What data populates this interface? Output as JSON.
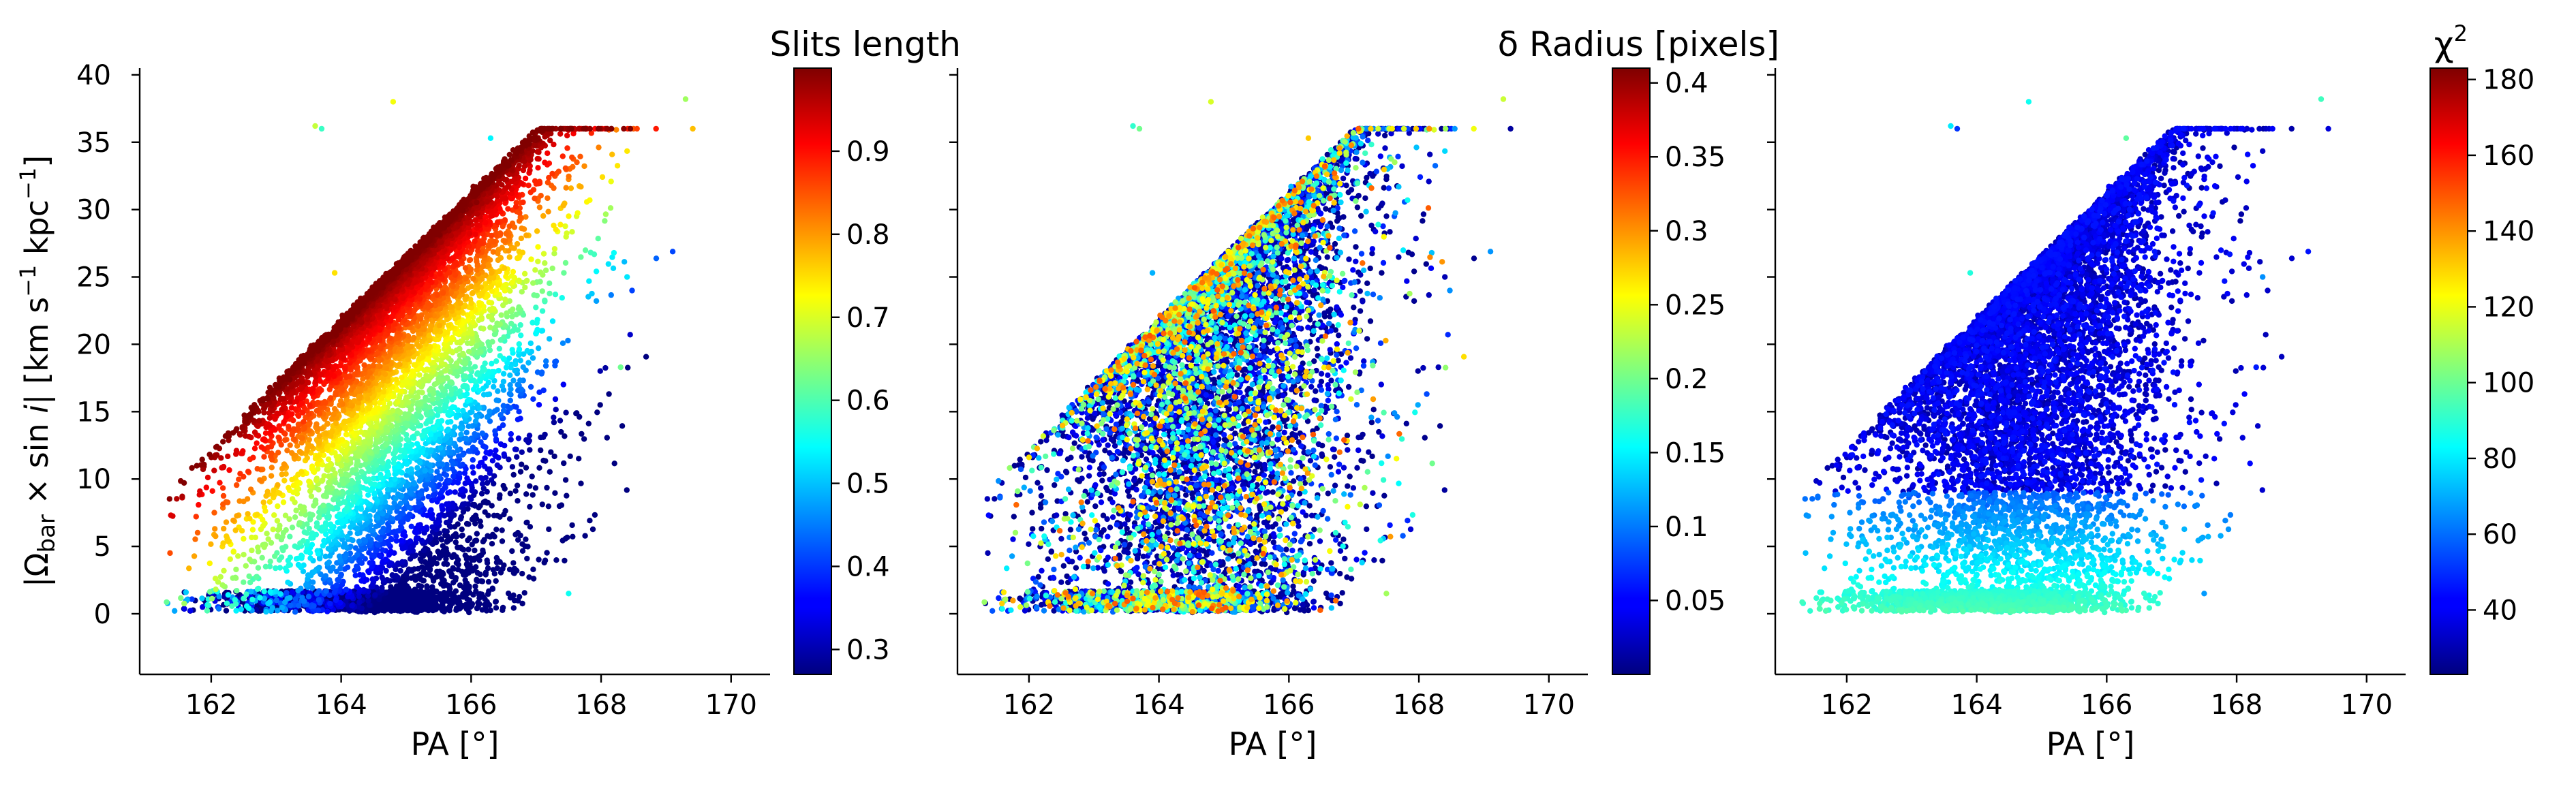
{
  "chart_data": [
    {
      "type": "scatter",
      "xlabel": "PA [°]",
      "ylabel": "|Ω_bar × sin i|   [km s⁻¹ kpc⁻¹]",
      "xlim": [
        160.9,
        170.6
      ],
      "ylim": [
        -4.5,
        40.5
      ],
      "xticks": [
        162,
        164,
        166,
        168,
        170
      ],
      "yticks": [
        0,
        5,
        10,
        15,
        20,
        25,
        30,
        35,
        40
      ],
      "colorbar": {
        "title": "Slits length",
        "colormap": "jet",
        "range": [
          0.27,
          1.0
        ],
        "ticks": [
          0.3,
          0.4,
          0.5,
          0.6,
          0.7,
          0.8,
          0.9
        ]
      },
      "color_variable": "slit_length"
    },
    {
      "type": "scatter",
      "xlabel": "PA [°]",
      "xlim": [
        160.9,
        170.6
      ],
      "ylim": [
        -4.5,
        40.5
      ],
      "xticks": [
        162,
        164,
        166,
        168,
        170
      ],
      "colorbar": {
        "title": "δ Radius [pixels]",
        "colormap": "jet",
        "range": [
          0.0,
          0.41
        ],
        "ticks": [
          0.05,
          0.1,
          0.15,
          0.2,
          0.25,
          0.3,
          0.35,
          0.4
        ]
      },
      "color_variable": "delta_radius"
    },
    {
      "type": "scatter",
      "xlabel": "PA [°]",
      "xlim": [
        160.9,
        170.6
      ],
      "ylim": [
        -4.5,
        40.5
      ],
      "xticks": [
        162,
        164,
        166,
        168,
        170
      ],
      "colorbar": {
        "title": "χ²",
        "colormap": "jet",
        "range": [
          23,
          183
        ],
        "ticks": [
          40,
          60,
          80,
          100,
          120,
          140,
          160,
          180
        ]
      },
      "color_variable": "chi2"
    }
  ],
  "point_cloud": {
    "n_points": 9000,
    "description_values": {
      "pa_min": 161.2,
      "pa_max": 169.7,
      "omega_min": 0.2,
      "omega_max": 38.5,
      "ridge": "omega ≈ 12 + 4.9·(PA − 162)",
      "outliers": [
        [
          163.7,
          36.0
        ],
        [
          164.8,
          38.0
        ],
        [
          166.3,
          35.3
        ],
        [
          169.3,
          38.2
        ],
        [
          168.4,
          25.0
        ],
        [
          168.3,
          18.3
        ],
        [
          167.5,
          1.5
        ],
        [
          163.6,
          36.2
        ],
        [
          163.9,
          25.3
        ]
      ]
    }
  }
}
